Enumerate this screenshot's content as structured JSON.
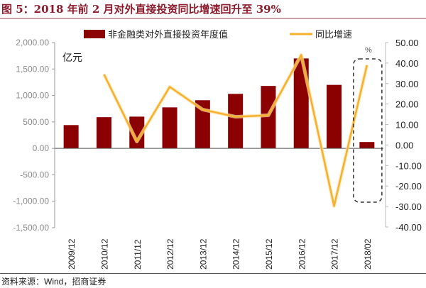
{
  "header": {
    "title": "图 5：2018 年前 2 月对外直接投资同比增速回升至 39%"
  },
  "footer": {
    "source": "资料来源：Wind，招商证券"
  },
  "colors": {
    "bar": "#8b0000",
    "line": "#f5b02e",
    "title": "#8b1a2a",
    "axis": "#999999",
    "highlight_box": "#333333"
  },
  "chart_data": {
    "type": "bar+line",
    "title": "2018 年前 2 月对外直接投资同比增速回升至 39%",
    "categories": [
      "2009/12",
      "2010/12",
      "2011/12",
      "2012/12",
      "2013/12",
      "2014/12",
      "2015/12",
      "2016/12",
      "2017/12",
      "2018/02"
    ],
    "series": [
      {
        "name": "非金融类对外直接投资年度值",
        "type": "bar",
        "axis": "left",
        "values": [
          440,
          590,
          600,
          775,
          910,
          1030,
          1180,
          1700,
          1200,
          120
        ]
      },
      {
        "name": "同比增速",
        "type": "line",
        "axis": "right",
        "values": [
          null,
          34.5,
          1.7,
          28.4,
          17.3,
          13.8,
          14.5,
          44.0,
          -29.8,
          39.0
        ]
      }
    ],
    "left_axis": {
      "unit_label": "亿元",
      "ylim": [
        -1500,
        2000
      ],
      "ticks": [
        "2,000.00",
        "1,500.00",
        "1,000.00",
        "500.00",
        "0.00",
        "-500.00",
        "-1,000.00",
        "-1,500.00"
      ]
    },
    "right_axis": {
      "unit_label": "%",
      "ylim": [
        -40,
        50
      ],
      "ticks": [
        "50.00",
        "40.00",
        "30.00",
        "20.00",
        "10.00",
        "0.00",
        "-10.00",
        "-20.00",
        "-30.00",
        "-40.00"
      ]
    },
    "legend": {
      "position": "top",
      "entries": [
        "非金融类对外直接投资年度值",
        "同比增速"
      ]
    },
    "annotations": [
      "dashed rounded box highlighting 2018/02"
    ],
    "grid": false
  }
}
